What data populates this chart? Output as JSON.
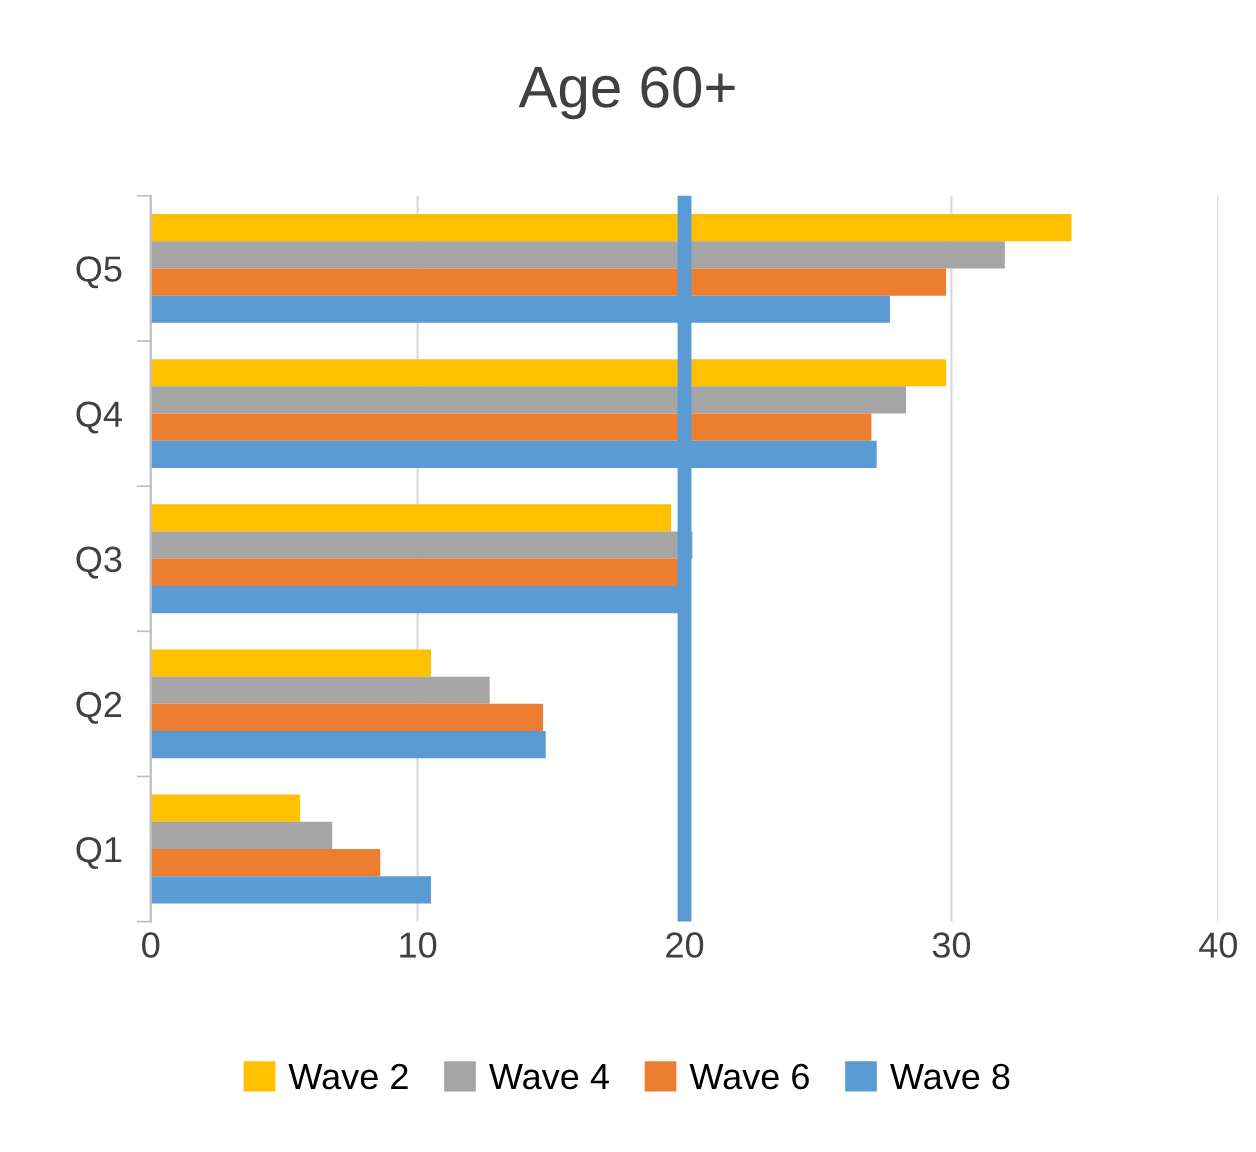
{
  "chart_data": {
    "type": "bar",
    "orientation": "horizontal",
    "title": "Age 60+",
    "categories": [
      "Q5",
      "Q4",
      "Q3",
      "Q2",
      "Q1"
    ],
    "series": [
      {
        "name": "Wave 2",
        "color": "#ffc000",
        "values": [
          34.5,
          29.8,
          19.5,
          10.5,
          5.6
        ]
      },
      {
        "name": "Wave 4",
        "color": "#a5a5a5",
        "values": [
          32.0,
          28.3,
          20.3,
          12.7,
          6.8
        ]
      },
      {
        "name": "Wave 6",
        "color": "#ed7d31",
        "values": [
          29.8,
          27.0,
          19.9,
          14.7,
          8.6
        ]
      },
      {
        "name": "Wave 8",
        "color": "#5b9bd5",
        "values": [
          27.7,
          27.2,
          19.8,
          14.8,
          10.5
        ]
      }
    ],
    "xlim": [
      0,
      40
    ],
    "xticks": [
      0,
      10,
      20,
      30,
      40
    ],
    "grid": "x",
    "legend": "bottom",
    "ref_lines": [
      {
        "axis": "x",
        "value": 20,
        "color": "#5b9bd5"
      }
    ]
  }
}
